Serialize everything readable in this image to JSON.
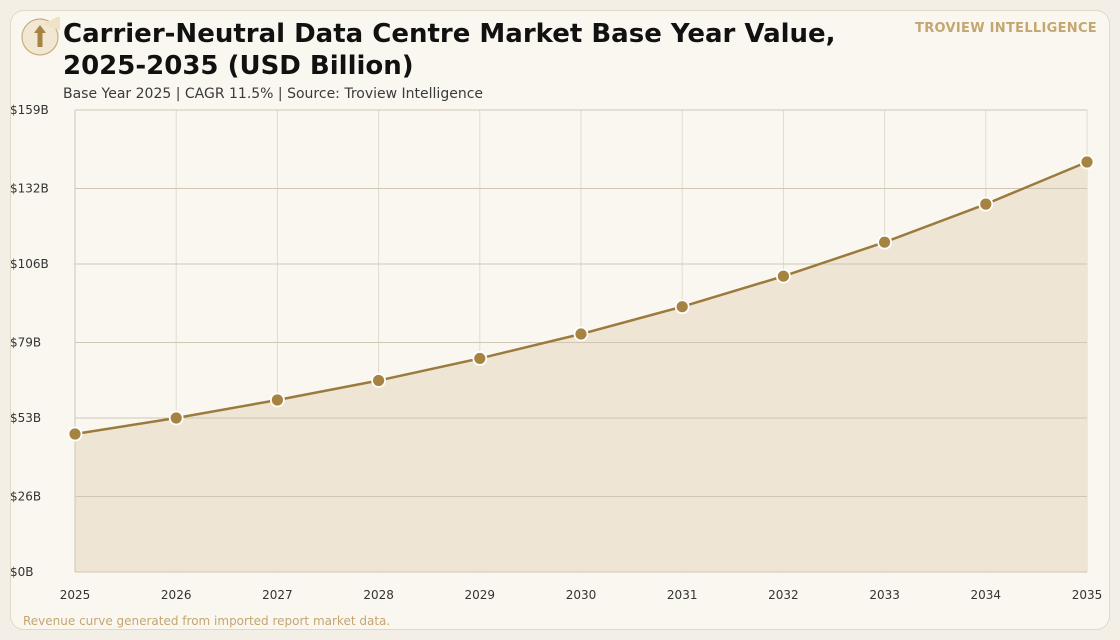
{
  "header": {
    "title": "Carrier-Neutral Data Centre Market Base Year Value, 2025-2035 (USD Billion)",
    "subtitle": "Base Year 2025 | CAGR 11.5% | Source: Troview Intelligence",
    "brand": "TROVIEW INTELLIGENCE"
  },
  "footer": {
    "note": "Revenue curve generated from imported report market data."
  },
  "colors": {
    "line": "#9b7a3c",
    "marker": "#a68340",
    "area": "#ede4d2",
    "grid": "#cfc6b6",
    "vgrid": "#e2dbce",
    "background": "#faf7f0",
    "brand": "#c4a670"
  },
  "icons": {
    "logo": "up-arrow-icon"
  },
  "chart_data": {
    "type": "area",
    "title": "Carrier-Neutral Data Centre Market Base Year Value, 2025-2035 (USD Billion)",
    "xlabel": "",
    "ylabel": "",
    "x": [
      "2025",
      "2026",
      "2027",
      "2028",
      "2029",
      "2030",
      "2031",
      "2032",
      "2033",
      "2034",
      "2035"
    ],
    "series": [
      {
        "values": [
          47.5,
          53.0,
          59.2,
          65.9,
          73.5,
          81.9,
          91.3,
          101.8,
          113.5,
          126.6,
          141.1
        ]
      }
    ],
    "ylim": [
      0,
      159
    ],
    "yticks": [
      0,
      26,
      53,
      79,
      106,
      132,
      159
    ],
    "ytick_labels": [
      "$0B",
      "$26B",
      "$53B",
      "$79B",
      "$106B",
      "$132B",
      "$159B"
    ],
    "grid": true,
    "legend": "none",
    "markers": true
  }
}
